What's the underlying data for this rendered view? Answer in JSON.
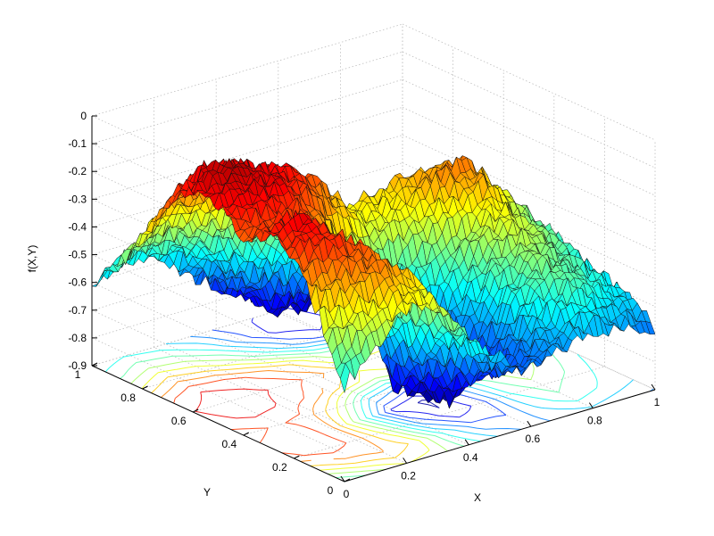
{
  "chart_data": {
    "type": "surface3d",
    "title": "",
    "xlabel": "X",
    "ylabel": "Y",
    "zlabel": "f(X,Y)",
    "xlim": [
      0,
      1
    ],
    "ylim": [
      0,
      1
    ],
    "zlim": [
      -0.9,
      0
    ],
    "x_ticks": [
      "0",
      "0.2",
      "0.4",
      "0.6",
      "0.8",
      "1"
    ],
    "y_ticks": [
      "0",
      "0.2",
      "0.4",
      "0.6",
      "0.8",
      "1"
    ],
    "z_ticks": [
      "0",
      "-0.1",
      "-0.2",
      "-0.3",
      "-0.4",
      "-0.5",
      "-0.6",
      "-0.7",
      "-0.8",
      "-0.9"
    ],
    "x": [
      0,
      0.1,
      0.2,
      0.3,
      0.4,
      0.5,
      0.6,
      0.7,
      0.8,
      0.9,
      1.0
    ],
    "y": [
      0,
      0.1,
      0.2,
      0.3,
      0.4,
      0.5,
      0.6,
      0.7,
      0.8,
      0.9,
      1.0
    ],
    "z": [
      [
        -0.55,
        -0.45,
        -0.35,
        -0.38,
        -0.5,
        -0.62,
        -0.7,
        -0.66,
        -0.62,
        -0.65,
        -0.68
      ],
      [
        -0.35,
        -0.25,
        -0.22,
        -0.3,
        -0.55,
        -0.72,
        -0.74,
        -0.6,
        -0.5,
        -0.55,
        -0.6
      ],
      [
        -0.18,
        -0.12,
        -0.18,
        -0.4,
        -0.7,
        -0.86,
        -0.78,
        -0.55,
        -0.45,
        -0.5,
        -0.58
      ],
      [
        -0.14,
        -0.1,
        -0.2,
        -0.5,
        -0.82,
        -0.88,
        -0.72,
        -0.5,
        -0.38,
        -0.45,
        -0.55
      ],
      [
        -0.2,
        -0.15,
        -0.18,
        -0.35,
        -0.6,
        -0.7,
        -0.58,
        -0.42,
        -0.3,
        -0.42,
        -0.5
      ],
      [
        -0.12,
        -0.08,
        -0.1,
        -0.18,
        -0.3,
        -0.4,
        -0.35,
        -0.25,
        -0.2,
        -0.35,
        -0.48
      ],
      [
        -0.1,
        -0.05,
        -0.08,
        -0.12,
        -0.2,
        -0.32,
        -0.3,
        -0.28,
        -0.3,
        -0.42,
        -0.52
      ],
      [
        -0.18,
        -0.1,
        -0.12,
        -0.2,
        -0.3,
        -0.45,
        -0.5,
        -0.45,
        -0.48,
        -0.55,
        -0.6
      ],
      [
        -0.35,
        -0.25,
        -0.3,
        -0.4,
        -0.55,
        -0.7,
        -0.78,
        -0.72,
        -0.7,
        -0.72,
        -0.78
      ],
      [
        -0.5,
        -0.42,
        -0.45,
        -0.55,
        -0.7,
        -0.82,
        -0.85,
        -0.78,
        -0.8,
        -0.78,
        -0.8
      ],
      [
        -0.6,
        -0.55,
        -0.58,
        -0.66,
        -0.75,
        -0.8,
        -0.82,
        -0.76,
        -0.78,
        -0.72,
        -0.7
      ]
    ],
    "colormap": "jet",
    "contour_projection": true,
    "grid": true
  }
}
